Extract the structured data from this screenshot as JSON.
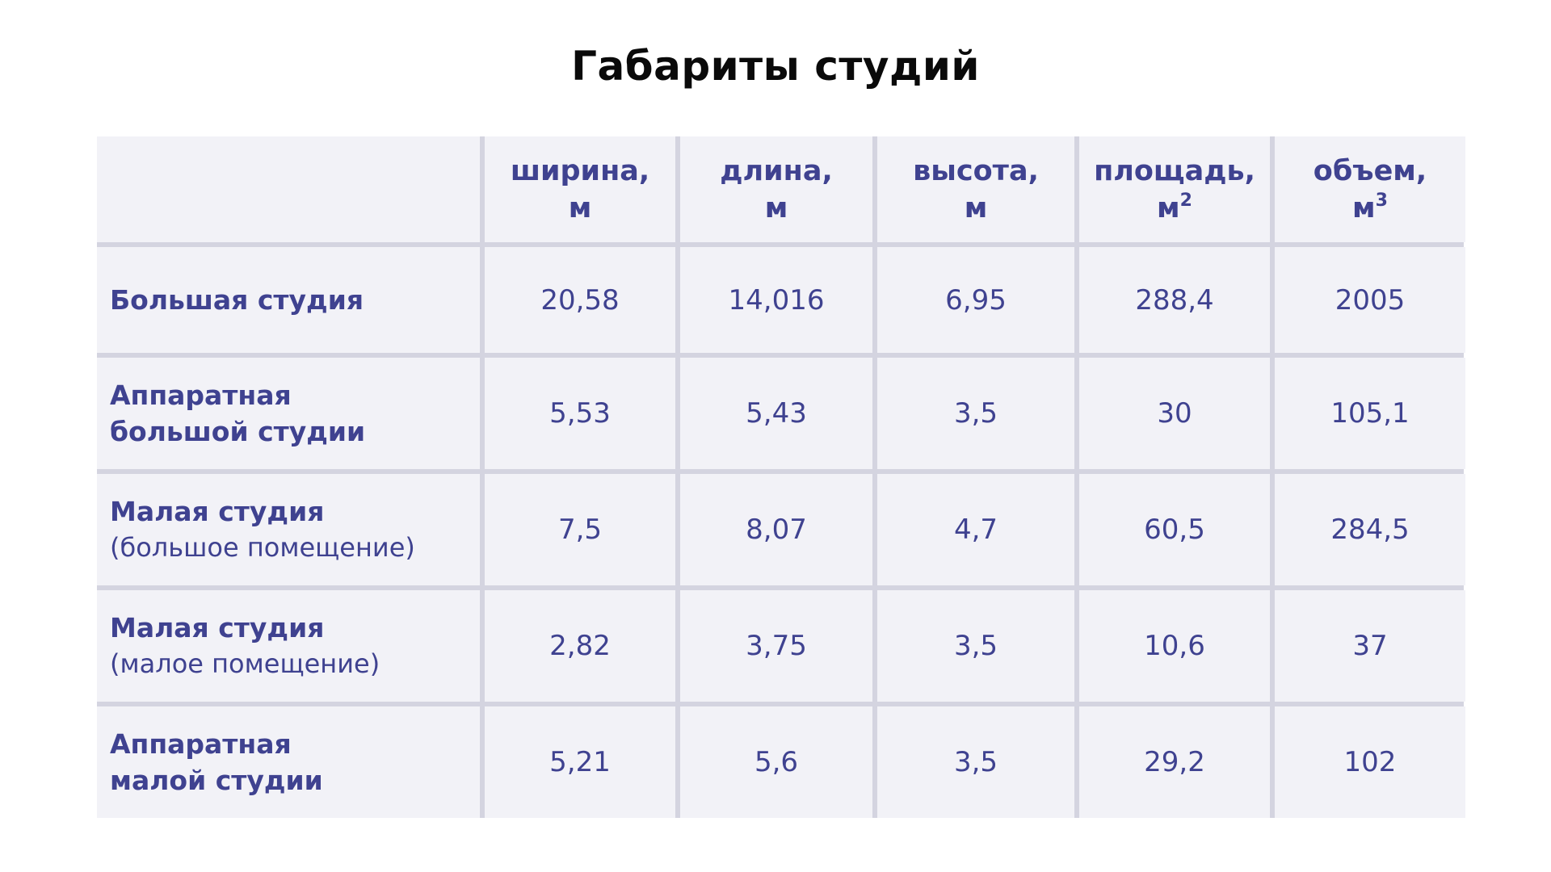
{
  "title": "Габариты студий",
  "table": {
    "columns": [
      {
        "label": "ширина,",
        "unit": "м",
        "sup": ""
      },
      {
        "label": "длина,",
        "unit": "м",
        "sup": ""
      },
      {
        "label": "высота,",
        "unit": "м",
        "sup": ""
      },
      {
        "label": "площадь,",
        "unit": "м",
        "sup": "2"
      },
      {
        "label": "объем,",
        "unit": "м",
        "sup": "3"
      }
    ],
    "rows": [
      {
        "name": "Большая студия",
        "note": "",
        "values": [
          "20,58",
          "14,016",
          "6,95",
          "288,4",
          "2005"
        ]
      },
      {
        "name": "Аппаратная\nбольшой студии",
        "note": "",
        "values": [
          "5,53",
          "5,43",
          "3,5",
          "30",
          "105,1"
        ]
      },
      {
        "name": "Малая студия",
        "note": "(большое помещение)",
        "values": [
          "7,5",
          "8,07",
          "4,7",
          "60,5",
          "284,5"
        ]
      },
      {
        "name": "Малая студия",
        "note": "(малое помещение)",
        "values": [
          "2,82",
          "3,75",
          "3,5",
          "10,6",
          "37"
        ]
      },
      {
        "name": "Аппаратная\nмалой студии",
        "note": "",
        "values": [
          "5,21",
          "5,6",
          "3,5",
          "29,2",
          "102"
        ]
      }
    ]
  },
  "colors": {
    "title": "#0a0a0a",
    "text": "#3f4290",
    "cell_bg": "#f2f2f7",
    "grid_lines": "#d4d4e0"
  }
}
